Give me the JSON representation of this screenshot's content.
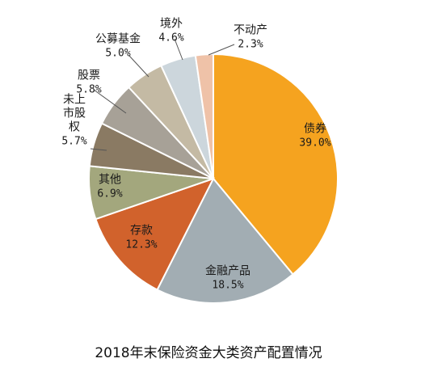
{
  "chart_data": {
    "type": "pie",
    "title": "2018年末保险资金大类资产配置情况",
    "unit": "%",
    "slices": [
      {
        "label": "债券",
        "value": 39.0,
        "display": "39.0%",
        "color": "#f5a31f"
      },
      {
        "label": "金融产品",
        "value": 18.5,
        "display": "18.5%",
        "color": "#a2adb3"
      },
      {
        "label": "存款",
        "value": 12.3,
        "display": "12.3%",
        "color": "#d1622c"
      },
      {
        "label": "其他",
        "value": 6.9,
        "display": "6.9%",
        "color": "#a3a77d"
      },
      {
        "label": "未上市股权",
        "label_lines": [
          "未上",
          "市股",
          "权"
        ],
        "value": 5.7,
        "display": "5.7%",
        "color": "#8a7a63"
      },
      {
        "label": "股票",
        "value": 5.8,
        "display": "5.8%",
        "color": "#a7a197"
      },
      {
        "label": "公募基金",
        "value": 5.0,
        "display": "5.0%",
        "color": "#c4baa4"
      },
      {
        "label": "境外",
        "value": 4.6,
        "display": "4.6%",
        "color": "#ccd6dc"
      },
      {
        "label": "不动产",
        "value": 2.3,
        "display": "2.3%",
        "color": "#efc2a8"
      }
    ]
  }
}
